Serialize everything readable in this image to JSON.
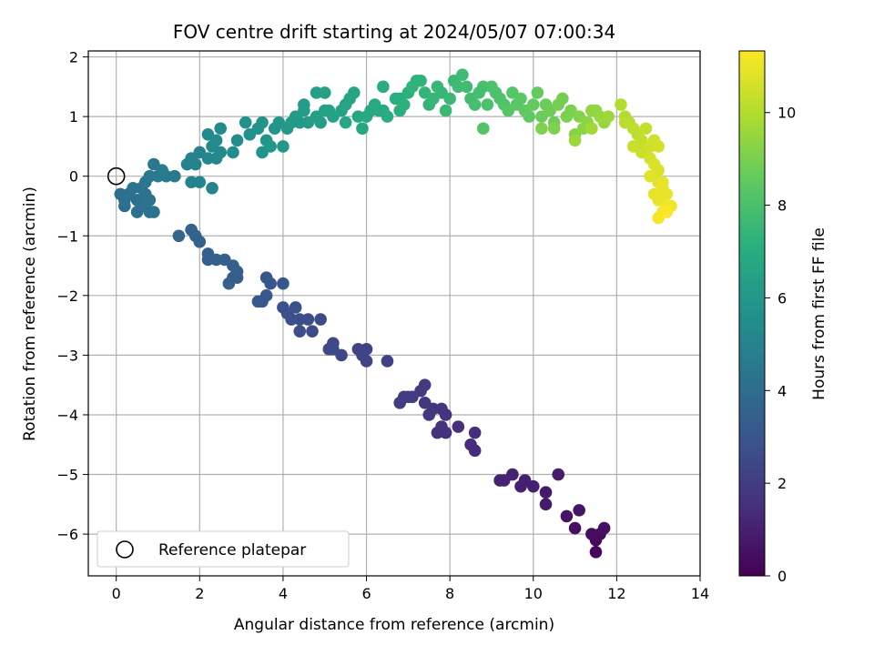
{
  "chart_data": {
    "type": "scatter",
    "title": "FOV centre drift starting at 2024/05/07 07:00:34",
    "xlabel": "Angular distance from reference (arcmin)",
    "ylabel": "Rotation from reference (arcmin)",
    "xlim": [
      -0.67,
      14.0
    ],
    "ylim": [
      -6.7,
      2.1
    ],
    "xticks": [
      0,
      2,
      4,
      6,
      8,
      10,
      12,
      14
    ],
    "yticks": [
      -6,
      -5,
      -4,
      -3,
      -2,
      -1,
      0,
      1,
      2
    ],
    "grid": true,
    "colorbar": {
      "label": "Hours from first FF file",
      "min": 0,
      "max": 11.33,
      "ticks": [
        0,
        2,
        4,
        6,
        8,
        10
      ],
      "colormap": "viridis"
    },
    "legend": {
      "position": "lower-left",
      "entries": [
        "Reference platepar"
      ]
    },
    "reference_point": {
      "x": 0,
      "y": 0,
      "label": "Reference platepar"
    },
    "points": [
      [
        11.5,
        -6.3,
        0.2
      ],
      [
        11.5,
        -6.1,
        0.3
      ],
      [
        11.4,
        -6.0,
        0.4
      ],
      [
        11.6,
        -6.0,
        0.4
      ],
      [
        11.7,
        -5.9,
        0.5
      ],
      [
        11.0,
        -5.9,
        0.5
      ],
      [
        10.8,
        -5.7,
        0.6
      ],
      [
        11.1,
        -5.6,
        0.6
      ],
      [
        10.3,
        -5.5,
        0.8
      ],
      [
        10.3,
        -5.3,
        0.8
      ],
      [
        10.6,
        -5.0,
        0.9
      ],
      [
        10.0,
        -5.2,
        1.0
      ],
      [
        9.8,
        -5.1,
        1.0
      ],
      [
        9.7,
        -5.2,
        1.0
      ],
      [
        9.5,
        -5.0,
        1.1
      ],
      [
        9.3,
        -5.1,
        1.1
      ],
      [
        9.2,
        -5.1,
        1.1
      ],
      [
        8.6,
        -4.6,
        1.4
      ],
      [
        8.5,
        -4.5,
        1.4
      ],
      [
        8.6,
        -4.3,
        1.5
      ],
      [
        8.2,
        -4.2,
        1.5
      ],
      [
        7.9,
        -4.3,
        1.6
      ],
      [
        7.7,
        -4.3,
        1.6
      ],
      [
        7.8,
        -4.2,
        1.6
      ],
      [
        7.9,
        -4.0,
        1.7
      ],
      [
        7.8,
        -3.9,
        1.7
      ],
      [
        7.6,
        -3.9,
        1.8
      ],
      [
        7.5,
        -4.0,
        1.8
      ],
      [
        7.4,
        -3.8,
        1.8
      ],
      [
        7.3,
        -3.6,
        1.9
      ],
      [
        7.4,
        -3.5,
        1.9
      ],
      [
        7.1,
        -3.7,
        1.9
      ],
      [
        7.0,
        -3.7,
        2.0
      ],
      [
        6.9,
        -3.7,
        2.0
      ],
      [
        6.8,
        -3.8,
        2.0
      ],
      [
        6.5,
        -3.1,
        2.2
      ],
      [
        6.0,
        -2.9,
        2.3
      ],
      [
        6.0,
        -3.1,
        2.3
      ],
      [
        5.9,
        -3.0,
        2.3
      ],
      [
        5.8,
        -2.9,
        2.3
      ],
      [
        5.4,
        -3.0,
        2.4
      ],
      [
        5.2,
        -2.8,
        2.4
      ],
      [
        5.1,
        -2.9,
        2.5
      ],
      [
        5.2,
        -2.9,
        2.5
      ],
      [
        4.9,
        -2.4,
        2.6
      ],
      [
        4.7,
        -2.6,
        2.6
      ],
      [
        4.6,
        -2.4,
        2.7
      ],
      [
        4.4,
        -2.6,
        2.7
      ],
      [
        4.4,
        -2.4,
        2.7
      ],
      [
        4.3,
        -2.2,
        2.8
      ],
      [
        4.2,
        -2.4,
        2.8
      ],
      [
        4.1,
        -2.3,
        2.8
      ],
      [
        4.0,
        -2.2,
        2.8
      ],
      [
        4.0,
        -1.8,
        3.0
      ],
      [
        3.7,
        -1.8,
        3.0
      ],
      [
        3.6,
        -1.7,
        3.1
      ],
      [
        3.6,
        -2.0,
        3.1
      ],
      [
        3.5,
        -2.1,
        3.1
      ],
      [
        3.4,
        -2.1,
        3.1
      ],
      [
        2.9,
        -1.6,
        3.3
      ],
      [
        2.9,
        -1.7,
        3.3
      ],
      [
        2.8,
        -1.7,
        3.3
      ],
      [
        2.7,
        -1.8,
        3.4
      ],
      [
        2.8,
        -1.5,
        3.4
      ],
      [
        2.6,
        -1.4,
        3.4
      ],
      [
        2.4,
        -1.4,
        3.5
      ],
      [
        2.2,
        -1.4,
        3.5
      ],
      [
        2.2,
        -1.3,
        3.5
      ],
      [
        2.0,
        -1.1,
        3.6
      ],
      [
        1.9,
        -1.0,
        3.6
      ],
      [
        1.8,
        -0.9,
        3.6
      ],
      [
        1.5,
        -1.0,
        3.7
      ],
      [
        0.2,
        -0.5,
        4.0
      ],
      [
        0.2,
        -0.4,
        4.0
      ],
      [
        0.1,
        -0.3,
        4.0
      ],
      [
        0.3,
        -0.3,
        4.1
      ],
      [
        0.5,
        -0.4,
        4.1
      ],
      [
        0.5,
        -0.6,
        4.1
      ],
      [
        0.6,
        -0.5,
        4.2
      ],
      [
        0.7,
        -0.3,
        4.2
      ],
      [
        0.8,
        -0.6,
        4.2
      ],
      [
        0.9,
        -0.6,
        4.3
      ],
      [
        0.8,
        -0.4,
        4.3
      ],
      [
        0.6,
        -0.2,
        4.3
      ],
      [
        0.4,
        -0.2,
        4.3
      ],
      [
        0.2,
        -0.4,
        4.3
      ],
      [
        0.7,
        -0.1,
        4.4
      ],
      [
        0.8,
        0.0,
        4.5
      ],
      [
        0.9,
        0.2,
        4.5
      ],
      [
        1.0,
        0.0,
        4.6
      ],
      [
        1.2,
        0.0,
        4.6
      ],
      [
        1.4,
        0.0,
        4.6
      ],
      [
        1.1,
        0.1,
        4.7
      ],
      [
        1.7,
        0.2,
        4.9
      ],
      [
        1.8,
        0.3,
        4.9
      ],
      [
        1.9,
        0.2,
        5.0
      ],
      [
        2.0,
        0.4,
        5.0
      ],
      [
        1.8,
        -0.1,
        5.0
      ],
      [
        2.0,
        -0.1,
        5.1
      ],
      [
        2.3,
        -0.2,
        5.1
      ],
      [
        2.2,
        0.3,
        5.2
      ],
      [
        2.4,
        0.3,
        5.2
      ],
      [
        2.3,
        0.5,
        5.3
      ],
      [
        2.5,
        0.4,
        5.3
      ],
      [
        2.2,
        0.7,
        5.3
      ],
      [
        2.4,
        0.6,
        5.4
      ],
      [
        2.5,
        0.8,
        5.4
      ],
      [
        2.8,
        0.4,
        5.5
      ],
      [
        2.9,
        0.6,
        5.5
      ],
      [
        3.1,
        0.9,
        5.6
      ],
      [
        3.2,
        0.7,
        5.6
      ],
      [
        3.4,
        0.8,
        5.7
      ],
      [
        3.5,
        0.9,
        5.7
      ],
      [
        3.6,
        0.6,
        5.8
      ],
      [
        3.8,
        0.8,
        5.8
      ],
      [
        3.5,
        0.4,
        5.8
      ],
      [
        3.7,
        0.5,
        5.9
      ],
      [
        3.9,
        0.9,
        5.9
      ],
      [
        4.0,
        0.5,
        6.0
      ],
      [
        4.1,
        0.8,
        6.0
      ],
      [
        4.2,
        0.9,
        6.1
      ],
      [
        4.3,
        1.0,
        6.1
      ],
      [
        4.4,
        0.9,
        6.1
      ],
      [
        4.5,
        1.2,
        6.2
      ],
      [
        4.5,
        1.1,
        6.2
      ],
      [
        4.6,
        0.9,
        6.2
      ],
      [
        4.8,
        1.0,
        6.3
      ],
      [
        4.9,
        0.9,
        6.3
      ],
      [
        5.0,
        1.1,
        6.4
      ],
      [
        4.8,
        1.4,
        6.4
      ],
      [
        5.0,
        1.4,
        6.4
      ],
      [
        5.1,
        1.1,
        6.5
      ],
      [
        5.2,
        1.0,
        6.5
      ],
      [
        5.4,
        1.1,
        6.5
      ],
      [
        5.5,
        1.2,
        6.6
      ],
      [
        5.6,
        1.3,
        6.6
      ],
      [
        5.7,
        1.4,
        6.6
      ],
      [
        5.5,
        0.9,
        6.7
      ],
      [
        5.8,
        1.0,
        6.7
      ],
      [
        5.9,
        0.8,
        6.7
      ],
      [
        6.0,
        1.0,
        6.8
      ],
      [
        6.1,
        1.1,
        6.8
      ],
      [
        6.2,
        1.2,
        6.9
      ],
      [
        6.3,
        1.1,
        6.9
      ],
      [
        6.4,
        1.1,
        6.9
      ],
      [
        6.5,
        1.0,
        7.0
      ],
      [
        6.4,
        1.5,
        7.0
      ],
      [
        6.7,
        1.3,
        7.1
      ],
      [
        6.8,
        1.3,
        7.1
      ],
      [
        6.8,
        1.1,
        7.1
      ],
      [
        6.9,
        1.2,
        7.2
      ],
      [
        7.0,
        1.4,
        7.2
      ],
      [
        7.1,
        1.5,
        7.3
      ],
      [
        7.2,
        1.6,
        7.3
      ],
      [
        7.3,
        1.6,
        7.3
      ],
      [
        7.4,
        1.4,
        7.4
      ],
      [
        7.5,
        1.2,
        7.4
      ],
      [
        7.6,
        1.3,
        7.5
      ],
      [
        7.7,
        1.5,
        7.5
      ],
      [
        7.8,
        1.4,
        7.5
      ],
      [
        7.9,
        1.1,
        7.6
      ],
      [
        8.0,
        1.3,
        7.6
      ],
      [
        8.1,
        1.6,
        7.6
      ],
      [
        8.2,
        1.5,
        7.7
      ],
      [
        8.3,
        1.7,
        7.7
      ],
      [
        8.4,
        1.5,
        7.8
      ],
      [
        8.5,
        1.3,
        7.8
      ],
      [
        8.6,
        1.2,
        7.9
      ],
      [
        8.7,
        1.4,
        7.9
      ],
      [
        8.8,
        1.5,
        7.9
      ],
      [
        8.9,
        1.2,
        8.0
      ],
      [
        9.0,
        1.5,
        8.0
      ],
      [
        9.1,
        1.4,
        8.1
      ],
      [
        9.2,
        1.3,
        8.1
      ],
      [
        8.8,
        0.8,
        8.2
      ],
      [
        9.3,
        1.2,
        8.2
      ],
      [
        9.4,
        1.1,
        8.3
      ],
      [
        9.5,
        1.4,
        8.3
      ],
      [
        9.6,
        1.2,
        8.4
      ],
      [
        9.7,
        1.3,
        8.4
      ],
      [
        9.8,
        1.1,
        8.5
      ],
      [
        9.9,
        1.0,
        8.5
      ],
      [
        10.0,
        1.2,
        8.6
      ],
      [
        10.1,
        1.4,
        8.6
      ],
      [
        10.2,
        1.0,
        8.7
      ],
      [
        10.3,
        1.2,
        8.7
      ],
      [
        10.4,
        1.1,
        8.8
      ],
      [
        10.5,
        0.9,
        8.8
      ],
      [
        10.6,
        1.2,
        8.9
      ],
      [
        10.7,
        1.3,
        8.9
      ],
      [
        10.8,
        1.0,
        9.0
      ],
      [
        10.9,
        1.1,
        9.0
      ],
      [
        10.2,
        0.8,
        9.1
      ],
      [
        10.5,
        0.8,
        9.1
      ],
      [
        11.0,
        0.7,
        9.2
      ],
      [
        11.1,
        1.0,
        9.2
      ],
      [
        11.2,
        0.8,
        9.3
      ],
      [
        11.3,
        0.9,
        9.3
      ],
      [
        11.4,
        1.1,
        9.4
      ],
      [
        11.5,
        1.1,
        9.4
      ],
      [
        11.6,
        1.0,
        9.5
      ],
      [
        11.7,
        0.9,
        9.5
      ],
      [
        11.8,
        1.0,
        9.6
      ],
      [
        11.0,
        0.6,
        9.6
      ],
      [
        11.4,
        0.8,
        9.7
      ],
      [
        12.1,
        1.2,
        10.0
      ],
      [
        12.2,
        1.0,
        10.0
      ],
      [
        12.2,
        0.9,
        10.1
      ],
      [
        12.3,
        0.9,
        10.1
      ],
      [
        12.4,
        0.8,
        10.2
      ],
      [
        12.5,
        0.7,
        10.2
      ],
      [
        12.6,
        0.6,
        10.3
      ],
      [
        12.7,
        0.8,
        10.3
      ],
      [
        12.4,
        0.5,
        10.4
      ],
      [
        12.6,
        0.4,
        10.4
      ],
      [
        12.8,
        0.5,
        10.5
      ],
      [
        12.9,
        0.6,
        10.5
      ],
      [
        13.0,
        0.5,
        10.6
      ],
      [
        12.8,
        0.3,
        10.6
      ],
      [
        12.9,
        0.2,
        10.7
      ],
      [
        13.0,
        0.1,
        10.7
      ],
      [
        12.8,
        0.0,
        10.8
      ],
      [
        13.0,
        -0.1,
        10.8
      ],
      [
        13.1,
        -0.1,
        10.9
      ],
      [
        12.9,
        -0.3,
        10.9
      ],
      [
        13.1,
        -0.2,
        11.0
      ],
      [
        13.2,
        -0.3,
        11.0
      ],
      [
        13.0,
        -0.4,
        11.0
      ],
      [
        13.2,
        -0.5,
        11.1
      ],
      [
        13.3,
        -0.5,
        11.1
      ],
      [
        13.1,
        -0.6,
        11.2
      ],
      [
        13.0,
        -0.7,
        11.2
      ],
      [
        13.2,
        -0.6,
        11.3
      ]
    ]
  }
}
